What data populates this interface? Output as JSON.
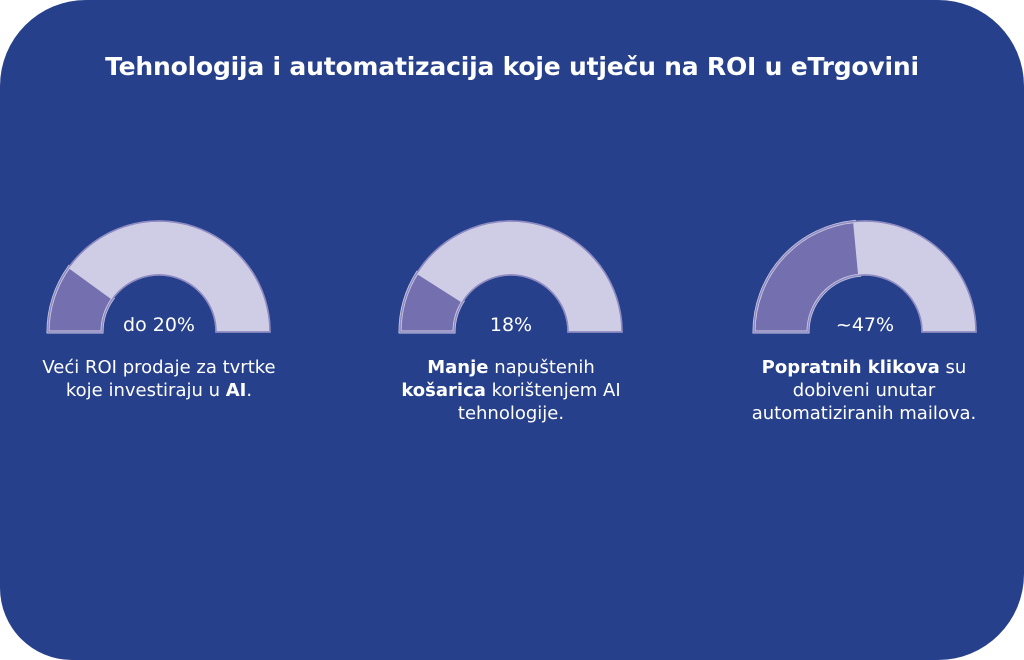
{
  "title": "Tehnologija i automatizacija koje utječu na ROI u eTrgovini",
  "colors": {
    "background": "#27408b",
    "track": "#cfcde6",
    "fill": "#7470b0",
    "text": "#ffffff"
  },
  "chart_data": [
    {
      "type": "gauge",
      "value_label": "do 20%",
      "value": 20,
      "max": 100,
      "description": {
        "line1_plain": "Veći ROI prodaje za tvrtke",
        "line2_plain": "koje investiraju u ",
        "line2_bold": "AI",
        "line2_end": "."
      }
    },
    {
      "type": "gauge",
      "value_label": "18%",
      "value": 18,
      "max": 100,
      "description": {
        "line1_bold": "Manje",
        "line1_plain": " napuštenih",
        "line2_bold": "košarica",
        "line2_plain": " korištenjem AI",
        "line3_plain": "tehnologije."
      }
    },
    {
      "type": "gauge",
      "value_label": "~47%",
      "value": 47,
      "max": 100,
      "description": {
        "line1_bold": "Popratnih klikova",
        "line1_plain": " su",
        "line2_plain": "dobiveni unutar",
        "line3_plain": "automatiziranih mailova."
      }
    }
  ]
}
